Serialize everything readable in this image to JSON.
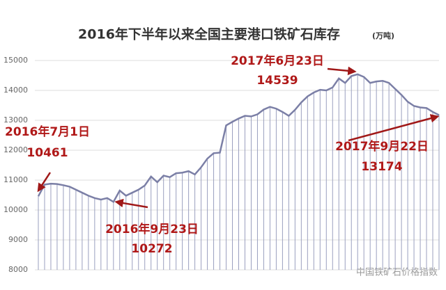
{
  "chart_data": {
    "type": "line",
    "title": "2016年下半年以来全国主要港口铁矿石库存",
    "subtitle": "(万吨)",
    "values": [
      10461,
      10850,
      10880,
      10870,
      10830,
      10780,
      10680,
      10580,
      10480,
      10400,
      10350,
      10400,
      10272,
      10650,
      10480,
      10580,
      10680,
      10820,
      11120,
      10930,
      11150,
      11100,
      11230,
      11250,
      11300,
      11190,
      11430,
      11720,
      11900,
      11920,
      12830,
      12950,
      13060,
      13150,
      13130,
      13200,
      13360,
      13450,
      13390,
      13280,
      13150,
      13350,
      13600,
      13800,
      13930,
      14020,
      14000,
      14100,
      14400,
      14250,
      14480,
      14539,
      14450,
      14250,
      14300,
      14320,
      14250,
      14050,
      13850,
      13620,
      13480,
      13430,
      13410,
      13280,
      13174
    ],
    "color": "#7b7fa6",
    "ylim": [
      8000,
      15000
    ],
    "yticks": [
      8000,
      9000,
      10000,
      11000,
      12000,
      13000,
      14000,
      15000
    ],
    "grid": true,
    "annotations": [
      {
        "text": "2016年7月1日",
        "value": 10461
      },
      {
        "text": "2016年9月23日",
        "value": 10272
      },
      {
        "text": "2017年6月23日",
        "value": 14539
      },
      {
        "text": "2017年9月22日",
        "value": 13174
      }
    ],
    "watermark": "中国铁矿石价格指数"
  }
}
